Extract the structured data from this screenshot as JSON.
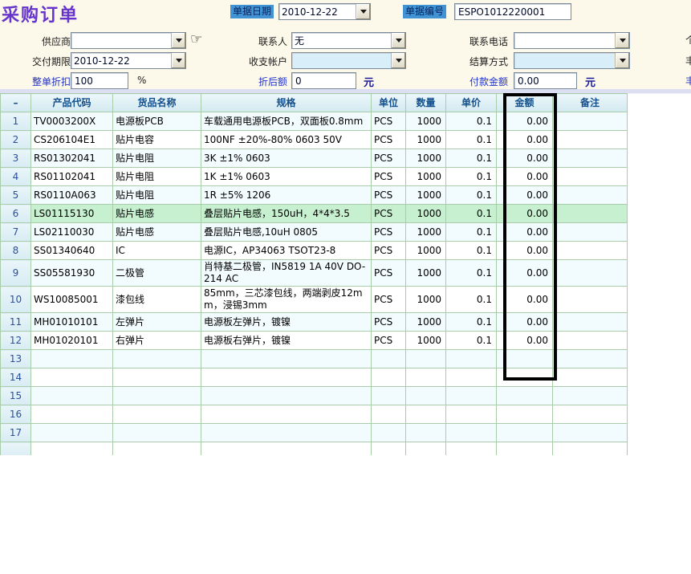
{
  "title": "采购订单",
  "header": {
    "doc_date_label": "单据日期",
    "doc_date": "2010-12-22",
    "doc_no_label": "单据编号",
    "doc_no": "ESPO1012220001",
    "supplier_label": "供应商",
    "supplier": "",
    "contact_label": "联系人",
    "contact": "无",
    "phone_label": "联系电话",
    "phone": "",
    "delivery_label": "交付期限",
    "delivery": "2010-12-22",
    "account_label": "收支帐户",
    "account": "",
    "settlement_label": "结算方式",
    "settlement": "",
    "discount_label": "整单折扣",
    "discount": "100",
    "discount_unit": "%",
    "discounted_label": "折后额",
    "discounted": "0",
    "discounted_unit": "元",
    "payment_label": "付款金额",
    "payment": "0.00",
    "payment_unit": "元",
    "hand_icon": "☞",
    "edge_fragments": [
      "个",
      "丰",
      "丰"
    ]
  },
  "table": {
    "columns": [
      {
        "key": "no",
        "label": "–"
      },
      {
        "key": "code",
        "label": "产品代码"
      },
      {
        "key": "name",
        "label": "货品名称"
      },
      {
        "key": "spec",
        "label": "规格"
      },
      {
        "key": "unit",
        "label": "单位"
      },
      {
        "key": "qty",
        "label": "数量"
      },
      {
        "key": "price",
        "label": "单价"
      },
      {
        "key": "amount",
        "label": "金额"
      },
      {
        "key": "note",
        "label": "备注"
      }
    ],
    "rows": [
      {
        "no": "1",
        "code": "TV0003200X",
        "name": "电源板PCB",
        "spec": "车载通用电源板PCB，双面板0.8mm",
        "unit": "PCS",
        "qty": "1000",
        "price": "0.1",
        "amount": "0.00",
        "note": "",
        "sel": false
      },
      {
        "no": "2",
        "code": "CS206104E1",
        "name": "贴片电容",
        "spec": "100NF ±20%-80% 0603 50V",
        "unit": "PCS",
        "qty": "1000",
        "price": "0.1",
        "amount": "0.00",
        "note": "",
        "sel": false
      },
      {
        "no": "3",
        "code": "RS01302041",
        "name": "贴片电阻",
        "spec": "3K ±1% 0603",
        "unit": "PCS",
        "qty": "1000",
        "price": "0.1",
        "amount": "0.00",
        "note": "",
        "sel": false
      },
      {
        "no": "4",
        "code": "RS01102041",
        "name": "贴片电阻",
        "spec": "1K ±1% 0603",
        "unit": "PCS",
        "qty": "1000",
        "price": "0.1",
        "amount": "0.00",
        "note": "",
        "sel": false
      },
      {
        "no": "5",
        "code": "RS0110A063",
        "name": "贴片电阻",
        "spec": "1R ±5% 1206",
        "unit": "PCS",
        "qty": "1000",
        "price": "0.1",
        "amount": "0.00",
        "note": "",
        "sel": false
      },
      {
        "no": "6",
        "code": "LS01115130",
        "name": "贴片电感",
        "spec": "叠层贴片电感，150uH，4*4*3.5",
        "unit": "PCS",
        "qty": "1000",
        "price": "0.1",
        "amount": "0.00",
        "note": "",
        "sel": true
      },
      {
        "no": "7",
        "code": "LS02110030",
        "name": "贴片电感",
        "spec": "叠层贴片电感,10uH 0805",
        "unit": "PCS",
        "qty": "1000",
        "price": "0.1",
        "amount": "0.00",
        "note": "",
        "sel": false
      },
      {
        "no": "8",
        "code": "SS01340640",
        "name": "IC",
        "spec": "电源IC，AP34063 TSOT23-8",
        "unit": "PCS",
        "qty": "1000",
        "price": "0.1",
        "amount": "0.00",
        "note": "",
        "sel": false
      },
      {
        "no": "9",
        "code": "SS05581930",
        "name": "二极管",
        "spec": "肖特基二极管，IN5819 1A 40V DO-214 AC",
        "unit": "PCS",
        "qty": "1000",
        "price": "0.1",
        "amount": "0.00",
        "note": "",
        "sel": false
      },
      {
        "no": "10",
        "code": "WS10085001",
        "name": "漆包线",
        "spec": "85mm，三芯漆包线，两端剥皮12mm，浸锡3mm",
        "unit": "PCS",
        "qty": "1000",
        "price": "0.1",
        "amount": "0.00",
        "note": "",
        "sel": false
      },
      {
        "no": "11",
        "code": "MH01010101",
        "name": "左弹片",
        "spec": "电源板左弹片，镀镍",
        "unit": "PCS",
        "qty": "1000",
        "price": "0.1",
        "amount": "0.00",
        "note": "",
        "sel": false
      },
      {
        "no": "12",
        "code": "MH01020101",
        "name": "右弹片",
        "spec": "电源板右弹片，镀镍",
        "unit": "PCS",
        "qty": "1000",
        "price": "0.1",
        "amount": "0.00",
        "note": "",
        "sel": false
      },
      {
        "no": "13",
        "code": "",
        "name": "",
        "spec": "",
        "unit": "",
        "qty": "",
        "price": "",
        "amount": "",
        "note": "",
        "sel": false
      },
      {
        "no": "14",
        "code": "",
        "name": "",
        "spec": "",
        "unit": "",
        "qty": "",
        "price": "",
        "amount": "",
        "note": "",
        "sel": false
      },
      {
        "no": "15",
        "code": "",
        "name": "",
        "spec": "",
        "unit": "",
        "qty": "",
        "price": "",
        "amount": "",
        "note": "",
        "sel": false
      },
      {
        "no": "16",
        "code": "",
        "name": "",
        "spec": "",
        "unit": "",
        "qty": "",
        "price": "",
        "amount": "",
        "note": "",
        "sel": false
      },
      {
        "no": "17",
        "code": "",
        "name": "",
        "spec": "",
        "unit": "",
        "qty": "",
        "price": "",
        "amount": "",
        "note": "",
        "sel": false
      },
      {
        "no": "",
        "code": "",
        "name": "",
        "spec": "",
        "unit": "",
        "qty": "",
        "price": "",
        "amount": "",
        "note": "",
        "sel": false
      }
    ]
  },
  "colors": {
    "form_background": "#FCF8EA",
    "title": "#6633CC",
    "tag_background": "#4293D4",
    "blue_label": "#2233CC",
    "grid_line": "#A9CDA9",
    "selected_row": "#C6F0CF",
    "header_fill": "#D2E9F0",
    "highlight_rect": "#000000"
  }
}
